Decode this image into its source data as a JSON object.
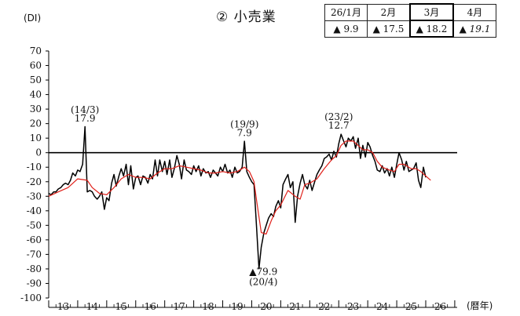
{
  "header": {
    "title": "② 小売業",
    "y_unit": "(DI)",
    "x_unit": "(暦年)"
  },
  "forecast_table": {
    "months": [
      "26/1月",
      "2月",
      "3月",
      "4月"
    ],
    "values": [
      "▲ 9.9",
      "▲ 17.5",
      "▲ 18.2",
      "▲ 19.1"
    ],
    "highlighted_index": 2,
    "italic_index": 3
  },
  "annotations": [
    {
      "period": "(14/3)",
      "value": "17.9"
    },
    {
      "period": "(19/9)",
      "value": "7.9"
    },
    {
      "period": "(23/2)",
      "value": "12.7"
    },
    {
      "period": "(20/4)",
      "value": "▲79.9"
    }
  ],
  "chart_data": {
    "type": "line",
    "title": "② 小売業",
    "ylabel": "(DI)",
    "xlabel": "(暦年)",
    "ylim": [
      -100,
      70
    ],
    "yticks": [
      70,
      60,
      50,
      40,
      30,
      20,
      10,
      0,
      -10,
      -20,
      -30,
      -40,
      -50,
      -60,
      -70,
      -80,
      -90,
      -100
    ],
    "x_tick_labels": [
      "13",
      "14",
      "15",
      "16",
      "17",
      "18",
      "19",
      "20",
      "21",
      "22",
      "23",
      "24",
      "25",
      "26"
    ],
    "x_range": [
      2013.0,
      2026.0
    ],
    "zero_line": true,
    "series": [
      {
        "color": "#000000",
        "points": [
          [
            2013.0,
            -28
          ],
          [
            2013.08,
            -29
          ],
          [
            2013.17,
            -27
          ],
          [
            2013.25,
            -27
          ],
          [
            2013.33,
            -25
          ],
          [
            2013.42,
            -24
          ],
          [
            2013.5,
            -22
          ],
          [
            2013.58,
            -21
          ],
          [
            2013.67,
            -22
          ],
          [
            2013.75,
            -19
          ],
          [
            2013.83,
            -14
          ],
          [
            2013.92,
            -16
          ],
          [
            2014.0,
            -12
          ],
          [
            2014.08,
            -13
          ],
          [
            2014.17,
            -8
          ],
          [
            2014.25,
            17.9
          ],
          [
            2014.33,
            -27
          ],
          [
            2014.42,
            -26
          ],
          [
            2014.5,
            -27
          ],
          [
            2014.58,
            -30
          ],
          [
            2014.67,
            -32
          ],
          [
            2014.75,
            -30
          ],
          [
            2014.83,
            -27
          ],
          [
            2014.92,
            -39
          ],
          [
            2015.0,
            -31
          ],
          [
            2015.08,
            -33
          ],
          [
            2015.17,
            -21
          ],
          [
            2015.25,
            -15
          ],
          [
            2015.33,
            -23
          ],
          [
            2015.42,
            -16
          ],
          [
            2015.5,
            -11
          ],
          [
            2015.58,
            -16
          ],
          [
            2015.67,
            -8
          ],
          [
            2015.75,
            -22
          ],
          [
            2015.83,
            -9
          ],
          [
            2015.92,
            -25
          ],
          [
            2016.0,
            -17
          ],
          [
            2016.08,
            -16
          ],
          [
            2016.17,
            -22
          ],
          [
            2016.25,
            -16
          ],
          [
            2016.33,
            -17
          ],
          [
            2016.42,
            -21
          ],
          [
            2016.5,
            -15
          ],
          [
            2016.58,
            -18
          ],
          [
            2016.67,
            -5
          ],
          [
            2016.75,
            -16
          ],
          [
            2016.83,
            -5
          ],
          [
            2016.92,
            -13
          ],
          [
            2017.0,
            -6
          ],
          [
            2017.08,
            -15
          ],
          [
            2017.17,
            -5
          ],
          [
            2017.25,
            -17
          ],
          [
            2017.33,
            -11
          ],
          [
            2017.42,
            -2
          ],
          [
            2017.5,
            -8
          ],
          [
            2017.58,
            -18
          ],
          [
            2017.67,
            -5
          ],
          [
            2017.75,
            -12
          ],
          [
            2017.83,
            -13
          ],
          [
            2017.92,
            -15
          ],
          [
            2018.0,
            -9
          ],
          [
            2018.08,
            -13
          ],
          [
            2018.17,
            -9
          ],
          [
            2018.25,
            -16
          ],
          [
            2018.33,
            -11
          ],
          [
            2018.42,
            -14
          ],
          [
            2018.5,
            -13
          ],
          [
            2018.58,
            -17
          ],
          [
            2018.67,
            -12
          ],
          [
            2018.75,
            -14
          ],
          [
            2018.83,
            -16
          ],
          [
            2018.92,
            -10
          ],
          [
            2019.0,
            -13
          ],
          [
            2019.08,
            -8
          ],
          [
            2019.17,
            -14
          ],
          [
            2019.25,
            -12
          ],
          [
            2019.33,
            -17
          ],
          [
            2019.42,
            -10
          ],
          [
            2019.5,
            -14
          ],
          [
            2019.58,
            -13
          ],
          [
            2019.67,
            -10
          ],
          [
            2019.75,
            7.9
          ],
          [
            2019.83,
            -13
          ],
          [
            2019.92,
            -17
          ],
          [
            2020.0,
            -20
          ],
          [
            2020.08,
            -22
          ],
          [
            2020.17,
            -52
          ],
          [
            2020.25,
            -79.9
          ],
          [
            2020.33,
            -65
          ],
          [
            2020.42,
            -55
          ],
          [
            2020.5,
            -50
          ],
          [
            2020.58,
            -45
          ],
          [
            2020.67,
            -42
          ],
          [
            2020.75,
            -44
          ],
          [
            2020.83,
            -37
          ],
          [
            2020.92,
            -33
          ],
          [
            2021.0,
            -38
          ],
          [
            2021.08,
            -22
          ],
          [
            2021.17,
            -18
          ],
          [
            2021.25,
            -15
          ],
          [
            2021.33,
            -24
          ],
          [
            2021.42,
            -20
          ],
          [
            2021.5,
            -48
          ],
          [
            2021.58,
            -30
          ],
          [
            2021.67,
            -21
          ],
          [
            2021.75,
            -15
          ],
          [
            2021.83,
            -22
          ],
          [
            2021.92,
            -25
          ],
          [
            2022.0,
            -19
          ],
          [
            2022.08,
            -26
          ],
          [
            2022.17,
            -20
          ],
          [
            2022.25,
            -15
          ],
          [
            2022.33,
            -12
          ],
          [
            2022.42,
            -9
          ],
          [
            2022.5,
            -4
          ],
          [
            2022.58,
            -3
          ],
          [
            2022.67,
            -1
          ],
          [
            2022.75,
            -5
          ],
          [
            2022.83,
            1
          ],
          [
            2022.92,
            -3
          ],
          [
            2023.0,
            6
          ],
          [
            2023.08,
            12.7
          ],
          [
            2023.17,
            8
          ],
          [
            2023.25,
            4
          ],
          [
            2023.33,
            10
          ],
          [
            2023.42,
            8
          ],
          [
            2023.5,
            11
          ],
          [
            2023.58,
            3
          ],
          [
            2023.67,
            10
          ],
          [
            2023.75,
            -4
          ],
          [
            2023.83,
            5
          ],
          [
            2023.92,
            -3
          ],
          [
            2024.0,
            7
          ],
          [
            2024.08,
            4
          ],
          [
            2024.17,
            -2
          ],
          [
            2024.25,
            -6
          ],
          [
            2024.33,
            -12
          ],
          [
            2024.42,
            -13
          ],
          [
            2024.5,
            -9
          ],
          [
            2024.58,
            -14
          ],
          [
            2024.67,
            -11
          ],
          [
            2024.75,
            -16
          ],
          [
            2024.83,
            -10
          ],
          [
            2024.92,
            -17
          ],
          [
            2025.0,
            -8
          ],
          [
            2025.08,
            0
          ],
          [
            2025.17,
            -5
          ],
          [
            2025.25,
            -12
          ],
          [
            2025.33,
            -6
          ],
          [
            2025.42,
            -13
          ],
          [
            2025.5,
            -12
          ],
          [
            2025.58,
            -11
          ],
          [
            2025.67,
            -7
          ],
          [
            2025.75,
            -19
          ],
          [
            2025.83,
            -24
          ],
          [
            2025.92,
            -10
          ],
          [
            2026.0,
            -17
          ]
        ]
      },
      {
        "color": "#e0201a",
        "points": [
          [
            2013.0,
            -30
          ],
          [
            2013.33,
            -27
          ],
          [
            2013.67,
            -24
          ],
          [
            2014.0,
            -18
          ],
          [
            2014.33,
            -19
          ],
          [
            2014.5,
            -24
          ],
          [
            2014.75,
            -28
          ],
          [
            2015.0,
            -29
          ],
          [
            2015.25,
            -24
          ],
          [
            2015.5,
            -18
          ],
          [
            2015.75,
            -15
          ],
          [
            2016.0,
            -17
          ],
          [
            2016.25,
            -17
          ],
          [
            2016.5,
            -18
          ],
          [
            2016.75,
            -14
          ],
          [
            2017.0,
            -11
          ],
          [
            2017.25,
            -11
          ],
          [
            2017.5,
            -9
          ],
          [
            2017.75,
            -10
          ],
          [
            2018.0,
            -11
          ],
          [
            2018.25,
            -12
          ],
          [
            2018.5,
            -14
          ],
          [
            2018.75,
            -14
          ],
          [
            2019.0,
            -13
          ],
          [
            2019.25,
            -14
          ],
          [
            2019.5,
            -13
          ],
          [
            2019.75,
            -10
          ],
          [
            2019.92,
            -13
          ],
          [
            2020.08,
            -20
          ],
          [
            2020.17,
            -33
          ],
          [
            2020.33,
            -55
          ],
          [
            2020.5,
            -56
          ],
          [
            2020.67,
            -47
          ],
          [
            2020.83,
            -40
          ],
          [
            2021.0,
            -36
          ],
          [
            2021.25,
            -26
          ],
          [
            2021.5,
            -30
          ],
          [
            2021.67,
            -32
          ],
          [
            2021.83,
            -22
          ],
          [
            2022.0,
            -21
          ],
          [
            2022.25,
            -18
          ],
          [
            2022.5,
            -11
          ],
          [
            2022.75,
            -5
          ],
          [
            2022.92,
            -2
          ],
          [
            2023.08,
            5
          ],
          [
            2023.25,
            8
          ],
          [
            2023.5,
            8
          ],
          [
            2023.67,
            5
          ],
          [
            2023.83,
            2
          ],
          [
            2024.0,
            2
          ],
          [
            2024.17,
            0
          ],
          [
            2024.33,
            -6
          ],
          [
            2024.5,
            -10
          ],
          [
            2024.75,
            -12
          ],
          [
            2024.92,
            -13
          ],
          [
            2025.08,
            -8
          ],
          [
            2025.25,
            -8
          ],
          [
            2025.5,
            -11
          ],
          [
            2025.67,
            -11
          ],
          [
            2025.83,
            -13
          ],
          [
            2026.0,
            -16
          ],
          [
            2026.17,
            -19
          ]
        ]
      }
    ]
  }
}
